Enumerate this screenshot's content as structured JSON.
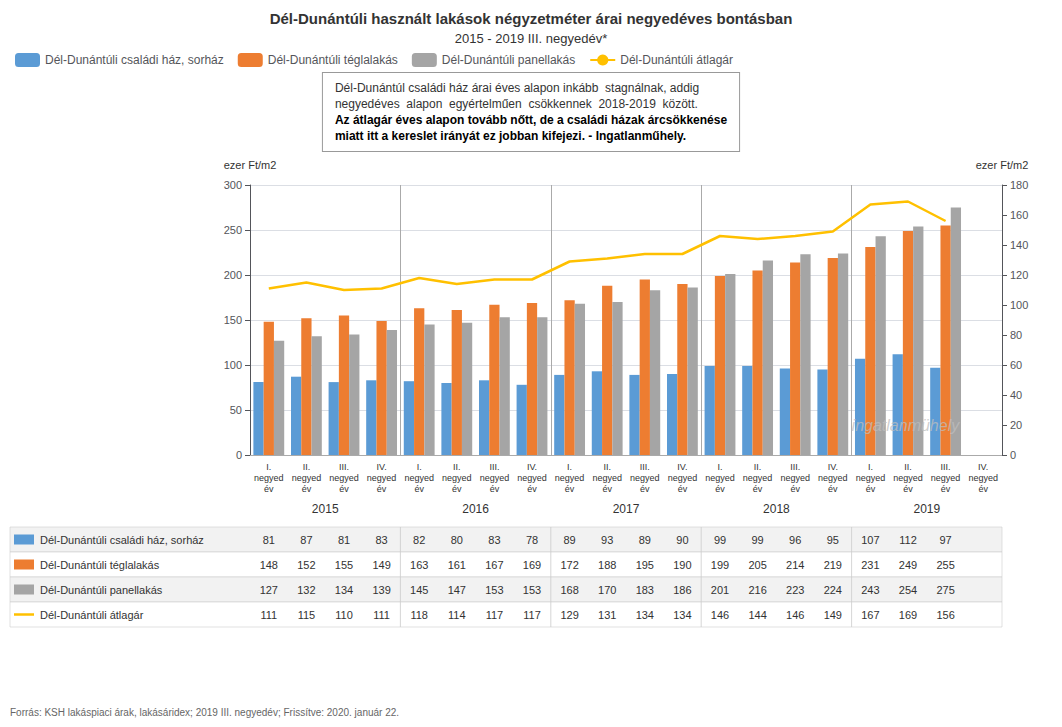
{
  "chart_data": {
    "type": "bar",
    "title": "Dél-Dunántúli használt lakások négyzetméter árai negyedéves bontásban",
    "subtitle": "2015 - 2019 III. negyedév*",
    "categories": [
      "I.\nnegyed\név",
      "II.\nnegyed\név",
      "III.\nnegyed\név",
      "IV.\nnegyed\név",
      "I.\nnegyed\név",
      "II.\nnegyed\név",
      "III.\nnegyed\név",
      "IV.\nnegyed\név",
      "I.\nnegyed\név",
      "II.\nnegyed\név",
      "III.\nnegyed\név",
      "IV.\nnegyed\név",
      "I.\nnegyed\név",
      "II.\nnegyed\név",
      "III.\nnegyed\név",
      "IV.\nnegyed\név",
      "I.\nnegyed\név",
      "II.\nnegyed\név",
      "III.\nnegyed\név",
      "IV.\nnegyed\név"
    ],
    "category_groups": [
      "2015",
      "2016",
      "2017",
      "2018",
      "2019"
    ],
    "ylabel": "ezer Ft/m2",
    "y2label": "ezer Ft/m2",
    "ylim": [
      0,
      300
    ],
    "yticks": [
      0,
      50,
      100,
      150,
      200,
      250,
      300
    ],
    "y2lim": [
      0,
      180
    ],
    "y2ticks": [
      0,
      20,
      40,
      60,
      80,
      100,
      120,
      140,
      160,
      180
    ],
    "grid": true,
    "legend": "upper left",
    "series": [
      {
        "name": "Dél-Dunántúli családi ház, sorház",
        "type": "bar",
        "color": "#5b9bd5",
        "values": [
          81,
          87,
          81,
          83,
          82,
          80,
          83,
          78,
          89,
          93,
          89,
          90,
          99,
          99,
          96,
          95,
          107,
          112,
          97,
          null
        ]
      },
      {
        "name": "Dél-Dunántúli téglalakás",
        "type": "bar",
        "color": "#ed7d31",
        "values": [
          148,
          152,
          155,
          149,
          163,
          161,
          167,
          169,
          172,
          188,
          195,
          190,
          199,
          205,
          214,
          219,
          231,
          249,
          255,
          null
        ]
      },
      {
        "name": "Dél-Dunántúli panellakás",
        "type": "bar",
        "color": "#a5a5a5",
        "values": [
          127,
          132,
          134,
          139,
          145,
          147,
          153,
          153,
          168,
          170,
          183,
          186,
          201,
          216,
          223,
          224,
          243,
          254,
          275,
          null
        ]
      },
      {
        "name": "Dél-Dunántúli átlagár",
        "type": "line",
        "color": "#ffc000",
        "axis": "y2",
        "values": [
          111,
          115,
          110,
          111,
          118,
          114,
          117,
          117,
          129,
          131,
          134,
          134,
          146,
          144,
          146,
          149,
          167,
          169,
          156,
          null
        ]
      }
    ],
    "annotations": [
      "Dél-Dunántúl családi ház árai éves alapon inkább  stagnálnak, addig\nnegyedéves  alapon  egyértelműen  csökkennek  2018-2019  között.",
      "Az átlagár éves alapon tovább nőtt, de a családi házak árcsökkenése\nmiatt itt a kereslet irányát ez jobban kifejezi. - Ingatlanműhely."
    ],
    "watermark": "ingatlanmühely",
    "source": "Forrás: KSH lakáspiaci árak, lakásáridex; 2019 III. negyedév; Frissítve: 2020. január 22."
  }
}
